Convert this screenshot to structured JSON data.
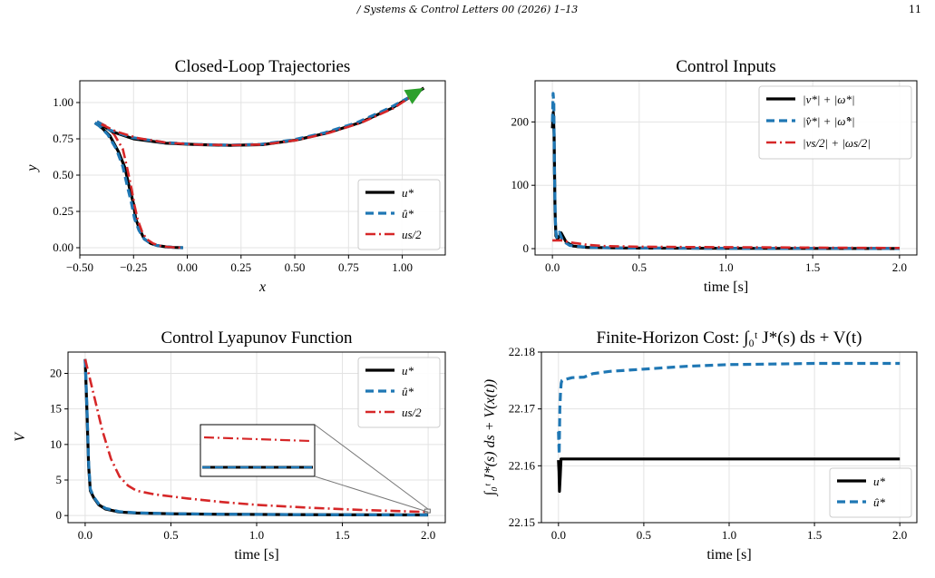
{
  "header": {
    "journal": "/ Systems & Control Letters 00 (2026) 1–13",
    "page": "11"
  },
  "colors": {
    "u_star": "#000000",
    "u_hat": "#1f77b4",
    "u_half": "#d62728",
    "arrow": "#2ca02c",
    "grid": "#e3e3e3"
  },
  "chart_data": [
    {
      "type": "line",
      "title": "Closed-Loop Trajectories",
      "xlabel": "x",
      "ylabel": "y",
      "xlim": [
        -0.5,
        1.2
      ],
      "ylim": [
        -0.05,
        1.15
      ],
      "xticks": [
        -0.5,
        -0.25,
        0.0,
        0.25,
        0.5,
        0.75,
        1.0
      ],
      "xtick_labels": [
        "−0.50",
        "−0.25",
        "0.00",
        "0.25",
        "0.50",
        "0.75",
        "1.00"
      ],
      "yticks": [
        0.0,
        0.25,
        0.5,
        0.75,
        1.0
      ],
      "ytick_labels": [
        "0.00",
        "0.25",
        "0.50",
        "0.75",
        "1.00"
      ],
      "grid": true,
      "legend_position": "lower-right",
      "legend": [
        "u*",
        "û*",
        "us/2"
      ],
      "series": [
        {
          "name": "u*",
          "x": [
            -0.43,
            -0.4,
            -0.36,
            -0.32,
            -0.29,
            -0.27,
            -0.25,
            -0.24,
            -0.22,
            -0.2,
            -0.17,
            -0.14,
            -0.1,
            -0.06,
            -0.02
          ],
          "y": [
            0.86,
            0.83,
            0.77,
            0.66,
            0.55,
            0.42,
            0.3,
            0.2,
            0.12,
            0.06,
            0.03,
            0.015,
            0.006,
            0.002,
            0.0
          ]
        },
        {
          "name": "û*",
          "x": [
            -0.43,
            -0.41,
            -0.37,
            -0.33,
            -0.3,
            -0.28,
            -0.26,
            -0.245,
            -0.225,
            -0.2,
            -0.17,
            -0.14,
            -0.1,
            -0.06,
            -0.02
          ],
          "y": [
            0.86,
            0.84,
            0.78,
            0.68,
            0.56,
            0.43,
            0.31,
            0.2,
            0.12,
            0.06,
            0.03,
            0.015,
            0.006,
            0.002,
            0.0
          ]
        },
        {
          "name": "us/2",
          "x": [
            -0.42,
            -0.38,
            -0.34,
            -0.3,
            -0.28,
            -0.26,
            -0.245,
            -0.23,
            -0.21,
            -0.19,
            -0.16,
            -0.13,
            -0.09,
            -0.05,
            -0.02
          ],
          "y": [
            0.87,
            0.84,
            0.78,
            0.68,
            0.55,
            0.41,
            0.29,
            0.19,
            0.11,
            0.06,
            0.03,
            0.014,
            0.005,
            0.001,
            0.0
          ]
        },
        {
          "name": "u*",
          "x": [
            -0.41,
            -0.35,
            -0.25,
            -0.1,
            0.05,
            0.2,
            0.35,
            0.5,
            0.65,
            0.8,
            0.95,
            1.05,
            1.1
          ],
          "y": [
            0.86,
            0.8,
            0.75,
            0.72,
            0.71,
            0.705,
            0.71,
            0.74,
            0.79,
            0.86,
            0.96,
            1.05,
            1.1
          ]
        },
        {
          "name": "û*",
          "x": [
            -0.42,
            -0.36,
            -0.26,
            -0.11,
            0.04,
            0.19,
            0.34,
            0.49,
            0.64,
            0.79,
            0.94,
            1.05,
            1.1
          ],
          "y": [
            0.87,
            0.81,
            0.76,
            0.725,
            0.712,
            0.707,
            0.712,
            0.742,
            0.792,
            0.862,
            0.962,
            1.05,
            1.1
          ]
        },
        {
          "name": "us/2",
          "x": [
            -0.4,
            -0.33,
            -0.23,
            -0.09,
            0.06,
            0.21,
            0.36,
            0.51,
            0.66,
            0.81,
            0.96,
            1.05,
            1.1
          ],
          "y": [
            0.85,
            0.8,
            0.755,
            0.722,
            0.71,
            0.706,
            0.711,
            0.741,
            0.791,
            0.861,
            0.961,
            1.05,
            1.1
          ]
        }
      ]
    },
    {
      "type": "line",
      "title": "Control Inputs",
      "xlabel": "time [s]",
      "ylabel": "",
      "xlim": [
        -0.1,
        2.1
      ],
      "ylim": [
        -10,
        265
      ],
      "xticks": [
        0.0,
        0.5,
        1.0,
        1.5,
        2.0
      ],
      "xtick_labels": [
        "0.0",
        "0.5",
        "1.0",
        "1.5",
        "2.0"
      ],
      "yticks": [
        0,
        100,
        200
      ],
      "ytick_labels": [
        "0",
        "100",
        "200"
      ],
      "grid": true,
      "legend_position": "upper-right",
      "legend": [
        "|v*| + |ω*|",
        "|v̂*| + |ω̂*|",
        "|vs/2| + |ωs/2|"
      ],
      "series": [
        {
          "name": "|v*| + |ω*|",
          "x": [
            0,
            0.005,
            0.01,
            0.015,
            0.02,
            0.03,
            0.05,
            0.08,
            0.12,
            0.2,
            0.4,
            1.0,
            2.0
          ],
          "y": [
            190,
            215,
            180,
            60,
            20,
            15,
            25,
            10,
            4,
            2,
            1,
            0.5,
            0.2
          ]
        },
        {
          "name": "|v̂*| + |ω̂*|",
          "x": [
            0,
            0.004,
            0.008,
            0.012,
            0.018,
            0.025,
            0.04,
            0.06,
            0.1,
            0.2,
            0.4,
            1.0,
            2.0
          ],
          "y": [
            200,
            245,
            230,
            120,
            30,
            18,
            26,
            12,
            5,
            2,
            1,
            0.5,
            0.2
          ]
        },
        {
          "name": "|vs/2| + |ωs/2|",
          "x": [
            0,
            0.05,
            0.1,
            0.2,
            0.3,
            0.5,
            0.8,
            1.2,
            1.6,
            2.0
          ],
          "y": [
            13,
            13,
            10,
            6,
            4,
            3,
            2.5,
            2,
            1.5,
            1
          ]
        }
      ]
    },
    {
      "type": "line",
      "title": "Control Lyapunov Function",
      "xlabel": "time [s]",
      "ylabel": "V",
      "xlim": [
        -0.1,
        2.1
      ],
      "ylim": [
        -1,
        23
      ],
      "xticks": [
        0.0,
        0.5,
        1.0,
        1.5,
        2.0
      ],
      "xtick_labels": [
        "0.0",
        "0.5",
        "1.0",
        "1.5",
        "2.0"
      ],
      "yticks": [
        0,
        5,
        10,
        15,
        20
      ],
      "ytick_labels": [
        "0",
        "5",
        "10",
        "15",
        "20"
      ],
      "grid": true,
      "legend_position": "upper-right",
      "legend": [
        "u*",
        "û*",
        "us/2"
      ],
      "series": [
        {
          "name": "u*",
          "x": [
            0,
            0.01,
            0.02,
            0.03,
            0.05,
            0.08,
            0.12,
            0.2,
            0.3,
            0.5,
            0.8,
            1.2,
            1.6,
            2.0
          ],
          "y": [
            22,
            15,
            7,
            3.5,
            2.5,
            1.5,
            0.9,
            0.5,
            0.35,
            0.25,
            0.18,
            0.13,
            0.1,
            0.08
          ]
        },
        {
          "name": "û*",
          "x": [
            0,
            0.01,
            0.02,
            0.03,
            0.05,
            0.08,
            0.12,
            0.2,
            0.3,
            0.5,
            0.8,
            1.2,
            1.6,
            2.0
          ],
          "y": [
            22,
            15.5,
            7.5,
            3.7,
            2.6,
            1.6,
            1.0,
            0.55,
            0.38,
            0.27,
            0.19,
            0.14,
            0.11,
            0.09
          ]
        },
        {
          "name": "us/2",
          "x": [
            0,
            0.05,
            0.1,
            0.15,
            0.2,
            0.25,
            0.3,
            0.4,
            0.6,
            0.8,
            1.0,
            1.3,
            1.6,
            2.0
          ],
          "y": [
            22,
            17,
            12,
            8,
            5.5,
            4.2,
            3.5,
            3.0,
            2.4,
            1.9,
            1.5,
            1.1,
            0.8,
            0.5
          ]
        }
      ]
    },
    {
      "type": "line",
      "title": "Finite-Horizon Cost: ∫₀ᵗ J*(s) ds + V(t)",
      "xlabel": "time [s]",
      "ylabel": "∫₀ᵗ J*(s) ds + V(x(t))",
      "xlim": [
        -0.1,
        2.1
      ],
      "ylim": [
        22.15,
        22.18
      ],
      "xticks": [
        0.0,
        0.5,
        1.0,
        1.5,
        2.0
      ],
      "xtick_labels": [
        "0.0",
        "0.5",
        "1.0",
        "1.5",
        "2.0"
      ],
      "yticks": [
        22.15,
        22.16,
        22.17,
        22.18
      ],
      "ytick_labels": [
        "22.15",
        "22.16",
        "22.17",
        "22.18"
      ],
      "grid": true,
      "legend_position": "lower-right",
      "legend": [
        "u*",
        "û*"
      ],
      "series": [
        {
          "name": "u*",
          "x": [
            0,
            0.003,
            0.006,
            0.01,
            0.015,
            0.02,
            0.03,
            0.05,
            0.1,
            0.5,
            1.0,
            1.5,
            2.0
          ],
          "y": [
            22.161,
            22.159,
            22.1555,
            22.158,
            22.1612,
            22.1612,
            22.1612,
            22.1612,
            22.1612,
            22.1612,
            22.1612,
            22.1612,
            22.1612
          ]
        },
        {
          "name": "û*",
          "x": [
            0,
            0.004,
            0.008,
            0.012,
            0.016,
            0.02,
            0.04,
            0.08,
            0.15,
            0.2,
            0.3,
            0.5,
            0.75,
            1.0,
            1.25,
            1.5,
            1.75,
            2.0
          ],
          "y": [
            22.166,
            22.162,
            22.17,
            22.173,
            22.1745,
            22.175,
            22.1752,
            22.1755,
            22.1756,
            22.1762,
            22.1766,
            22.177,
            22.1775,
            22.1778,
            22.1779,
            22.178,
            22.178,
            22.178
          ]
        }
      ]
    }
  ]
}
